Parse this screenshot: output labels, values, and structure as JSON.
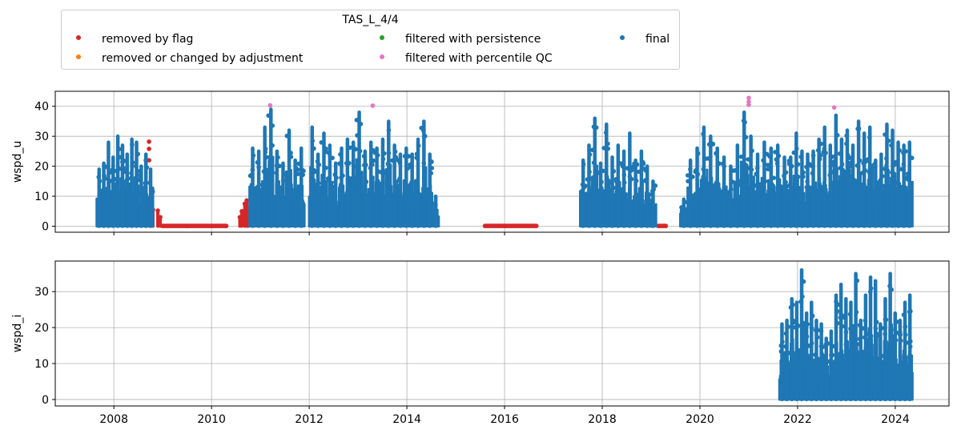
{
  "legend": {
    "title": "TAS_L_4/4",
    "items": [
      {
        "label": "removed by flag",
        "color": "#d62728"
      },
      {
        "label": "removed or changed by adjustment",
        "color": "#ff7f0e"
      },
      {
        "label": "filtered with persistence",
        "color": "#2ca02c"
      },
      {
        "label": "filtered with percentile QC",
        "color": "#e377c2"
      },
      {
        "label": "final",
        "color": "#1f77b4"
      }
    ]
  },
  "chart_data": [
    {
      "type": "scatter",
      "ylabel": "wspd_u",
      "xlim": [
        2006.8,
        2025.1
      ],
      "ylim": [
        -2,
        45
      ],
      "yticks": [
        0,
        10,
        20,
        30,
        40
      ],
      "xticks": [
        2008,
        2010,
        2012,
        2014,
        2016,
        2018,
        2020,
        2022,
        2024
      ],
      "grid": true,
      "series": [
        {
          "name": "removed by flag",
          "color": "#d62728",
          "points": [
            [
              2008.72,
              28.2
            ],
            [
              2008.72,
              25.8
            ],
            [
              2008.72,
              22.0
            ],
            [
              2008.8,
              5.5
            ],
            [
              2008.9,
              5.2
            ],
            [
              2008.95,
              3.0
            ],
            [
              2009.0,
              0.1
            ],
            [
              2009.5,
              0.1
            ],
            [
              2010.0,
              0.1
            ],
            [
              2010.3,
              0.1
            ],
            [
              2010.58,
              3.0
            ],
            [
              2010.62,
              5.0
            ],
            [
              2010.68,
              7.5
            ],
            [
              2010.72,
              8.6
            ],
            [
              2010.75,
              6.0
            ],
            [
              2015.6,
              0.1
            ],
            [
              2016.0,
              0.1
            ],
            [
              2016.65,
              0.1
            ],
            [
              2019.0,
              2.5
            ],
            [
              2019.15,
              0.1
            ],
            [
              2019.3,
              0.1
            ]
          ]
        },
        {
          "name": "removed or changed by adjustment",
          "color": "#ff7f0e",
          "points": []
        },
        {
          "name": "filtered with persistence",
          "color": "#2ca02c",
          "points": []
        },
        {
          "name": "filtered with percentile QC",
          "color": "#e377c2",
          "points": [
            [
              2011.2,
              40.3
            ],
            [
              2013.3,
              40.2
            ],
            [
              2021.0,
              42.8
            ],
            [
              2021.0,
              41.5
            ],
            [
              2021.0,
              40.5
            ],
            [
              2022.75,
              39.6
            ]
          ]
        },
        {
          "name": "final",
          "color": "#1f77b4",
          "segments": [
            {
              "start": 2007.65,
              "end": 2008.8,
              "peaks": [
                19,
                21,
                28,
                23,
                30,
                27,
                24,
                29,
                28,
                20,
                24,
                19
              ]
            },
            {
              "start": 2010.78,
              "end": 2011.9,
              "peaks": [
                26,
                25,
                33,
                39,
                25,
                21,
                32,
                22,
                26
              ]
            },
            {
              "start": 2012.0,
              "end": 2014.65,
              "peaks": [
                33,
                24,
                31,
                27,
                21,
                26,
                29,
                28,
                38,
                25,
                28,
                26,
                29,
                35,
                27,
                24,
                26,
                24,
                29,
                35,
                24,
                10
              ]
            },
            {
              "start": 2017.55,
              "end": 2019.1,
              "peaks": [
                22,
                27,
                36,
                21,
                34,
                23,
                27,
                25,
                31,
                22,
                25,
                20,
                15
              ]
            },
            {
              "start": 2019.6,
              "end": 2021.8,
              "peaks": [
                9,
                22,
                26,
                33,
                30,
                26,
                23,
                20,
                27,
                38,
                30,
                24,
                28,
                26,
                27,
                23
              ]
            },
            {
              "start": 2021.8,
              "end": 2024.35,
              "peaks": [
                23,
                31,
                25,
                24,
                25,
                29,
                33,
                27,
                37,
                29,
                32,
                27,
                35,
                31,
                33,
                22,
                24,
                34,
                32,
                28,
                27,
                28
              ]
            }
          ]
        }
      ]
    },
    {
      "type": "scatter",
      "ylabel": "wspd_i",
      "xlim": [
        2006.8,
        2025.1
      ],
      "ylim": [
        -1.8,
        38.5
      ],
      "yticks": [
        0,
        10,
        20,
        30
      ],
      "xticks": [
        2008,
        2010,
        2012,
        2014,
        2016,
        2018,
        2020,
        2022,
        2024
      ],
      "grid": true,
      "series": [
        {
          "name": "final",
          "color": "#1f77b4",
          "segments": [
            {
              "start": 2021.63,
              "end": 2024.35,
              "peaks": [
                21,
                22,
                28,
                27,
                36,
                24,
                27,
                22,
                21,
                17,
                19,
                29,
                32,
                28,
                27,
                35,
                22,
                29,
                34,
                33,
                21,
                28,
                35,
                24,
                22,
                27,
                29
              ]
            }
          ]
        }
      ]
    }
  ]
}
